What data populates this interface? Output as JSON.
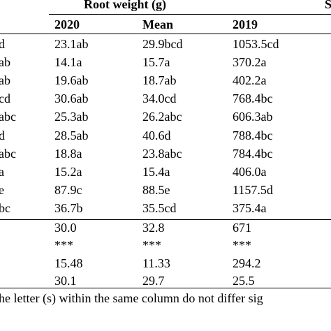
{
  "header": {
    "group_title": "Root weight (g)",
    "right_group_fragment": "S",
    "columns": [
      "2020",
      "Mean",
      "2019"
    ]
  },
  "rows": [
    {
      "c0": "d",
      "c1": "23.1ab",
      "c2": "29.9bcd",
      "c3": "1053.5cd"
    },
    {
      "c0": "ab",
      "c1": "14.1a",
      "c2": "15.7a",
      "c3": "370.2a"
    },
    {
      "c0": "ab",
      "c1": "19.6ab",
      "c2": "18.7ab",
      "c3": "402.2a"
    },
    {
      "c0": "cd",
      "c1": "30.6ab",
      "c2": "34.0cd",
      "c3": "768.4bc"
    },
    {
      "c0": "abc",
      "c1": "25.3ab",
      "c2": "26.2abc",
      "c3": "606.3ab"
    },
    {
      "c0": "d",
      "c1": "28.5ab",
      "c2": "40.6d",
      "c3": "788.4bc"
    },
    {
      "c0": "abc",
      "c1": "18.8a",
      "c2": "23.8abc",
      "c3": "784.4bc"
    },
    {
      "c0": "a",
      "c1": "15.2a",
      "c2": "15.4a",
      "c3": "406.0a"
    },
    {
      "c0": "e",
      "c1": "87.9c",
      "c2": "88.5e",
      "c3": "1157.5d"
    },
    {
      "c0": "bc",
      "c1": "36.7b",
      "c2": "35.5cd",
      "c3": "375.4a"
    }
  ],
  "stats": [
    {
      "c1": "30.0",
      "c2": "32.8",
      "c3": "671"
    },
    {
      "c1": "***",
      "c2": "***",
      "c3": "***"
    },
    {
      "c1": "15.48",
      "c2": "11.33",
      "c3": "294.2"
    },
    {
      "c1": "30.1",
      "c2": "29.7",
      "c3": "25.5"
    }
  ],
  "footnote": "he letter (s) within the same column do not differ sig"
}
